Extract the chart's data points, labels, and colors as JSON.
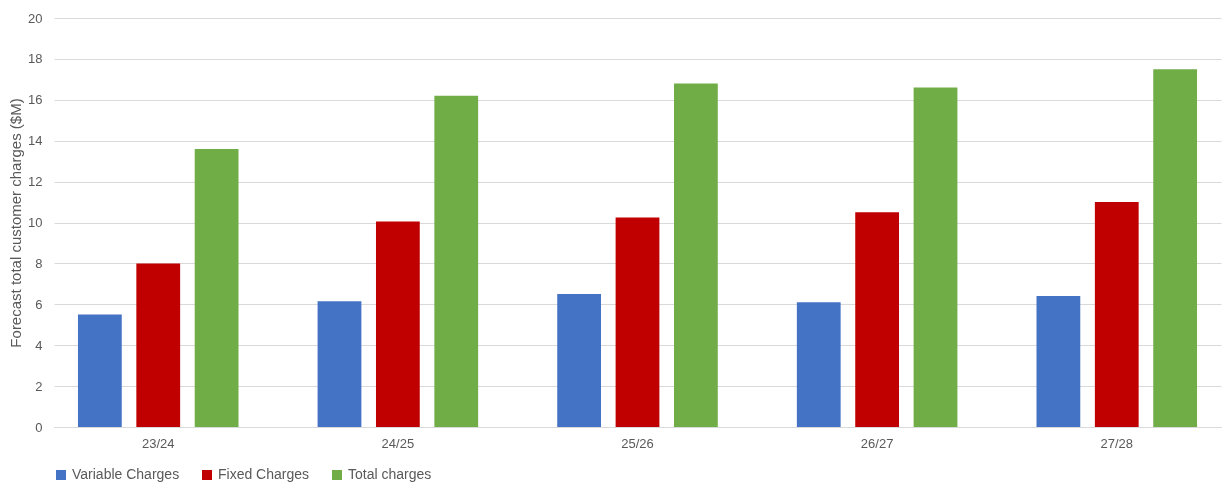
{
  "chart_data": {
    "type": "bar",
    "ylabel": "Forecast total customer charges ($M)",
    "categories": [
      "23/24",
      "24/25",
      "25/26",
      "26/27",
      "27/28"
    ],
    "series": [
      {
        "name": "Variable Charges",
        "color": "#4472c4",
        "values": [
          5.5,
          6.15,
          6.5,
          6.1,
          6.4
        ]
      },
      {
        "name": "Fixed Charges",
        "color": "#c00000",
        "values": [
          8.0,
          10.05,
          10.25,
          10.5,
          11.0
        ]
      },
      {
        "name": "Total charges",
        "color": "#70ad47",
        "values": [
          13.6,
          16.2,
          16.8,
          16.6,
          17.5
        ]
      }
    ],
    "ylim": [
      0,
      20
    ],
    "yticks": [
      0,
      2,
      4,
      6,
      8,
      10,
      12,
      14,
      16,
      18,
      20
    ],
    "grid": "y",
    "legend": "bottom"
  }
}
